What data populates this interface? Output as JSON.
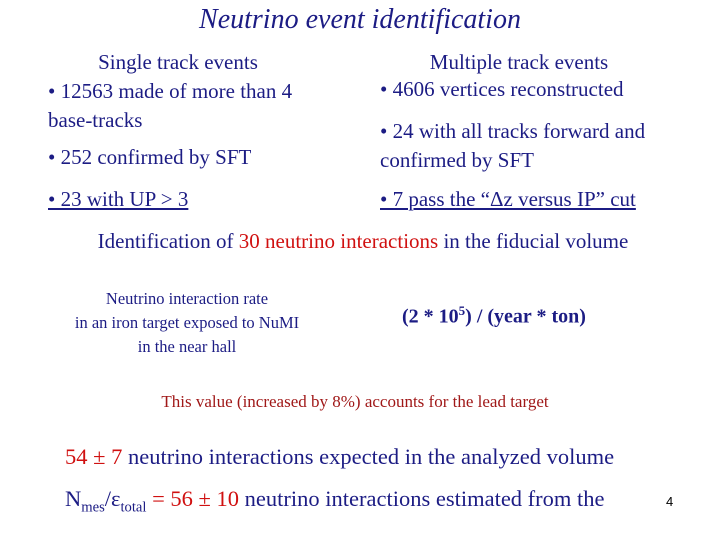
{
  "title": "Neutrino event identification",
  "left": {
    "heading": "Single track events",
    "items": [
      "• 12563 made of more than 4 base-tracks",
      "• 252 confirmed by SFT",
      "• 23 with UP > 3"
    ]
  },
  "right": {
    "heading": "Multiple track events",
    "items": [
      "• 4606 vertices reconstructed",
      "• 24 with all tracks forward and confirmed by SFT",
      "• 7 pass the “Δz versus IP” cut"
    ]
  },
  "identification": {
    "before": "Identification of",
    "highlight": "30 neutrino interactions",
    "after": "in the fiducial volume"
  },
  "rate": {
    "label_lines": [
      "Neutrino interaction rate",
      "in an iron target exposed to NuMI",
      "in the near hall"
    ],
    "value_start": "(2 * 10",
    "value_exponent": "5",
    "value_end": ") / (year * ton)"
  },
  "note": "This value (increased by 8%) accounts for the lead target",
  "expected": {
    "highlight": "54 ± 7",
    "text": "neutrino interactions expected in the analyzed volume"
  },
  "estimated": {
    "n": "N",
    "n_sub": "mes",
    "slash_eps": "/ε",
    "eps_sub": "total",
    "highlight": "= 56 ± 10",
    "text": "neutrino interactions estimated from the"
  },
  "page_number": "4"
}
